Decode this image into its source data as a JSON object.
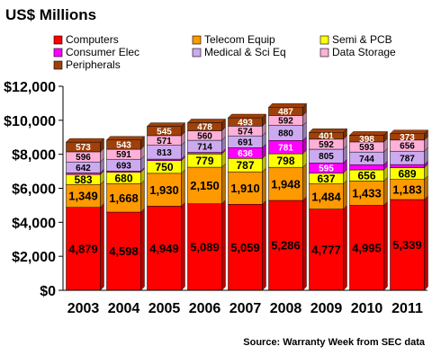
{
  "chart_data": {
    "type": "bar",
    "stacked": true,
    "title": "US$ Millions",
    "source": "Source: Warranty Week from SEC data",
    "categories": [
      "2003",
      "2004",
      "2005",
      "2006",
      "2007",
      "2008",
      "2009",
      "2010",
      "2011"
    ],
    "series": [
      {
        "name": "Computers",
        "color": "#ff0000",
        "values": [
          4879,
          4598,
          4949,
          5089,
          5059,
          5286,
          4777,
          4995,
          5339
        ]
      },
      {
        "name": "Telecom Equip",
        "color": "#ff9900",
        "values": [
          1349,
          1668,
          1930,
          2150,
          1910,
          1948,
          1484,
          1433,
          1183
        ]
      },
      {
        "name": "Semi & PCB",
        "color": "#ffff00",
        "values": [
          583,
          680,
          750,
          779,
          787,
          798,
          637,
          656,
          689
        ]
      },
      {
        "name": "Consumer Elec",
        "color": "#ff00ff",
        "values": [
          96,
          68,
          85,
          91,
          636,
          781,
          595,
          305,
          184
        ]
      },
      {
        "name": "Medical & Sci Eq",
        "color": "#ccaaf0",
        "values": [
          642,
          693,
          813,
          714,
          691,
          880,
          805,
          744,
          787
        ]
      },
      {
        "name": "Data Storage",
        "color": "#ffb0d8",
        "values": [
          596,
          591,
          571,
          560,
          574,
          592,
          592,
          593,
          656
        ]
      },
      {
        "name": "Peripherals",
        "color": "#a0400a",
        "values": [
          573,
          543,
          545,
          478,
          493,
          487,
          401,
          398,
          373
        ]
      }
    ],
    "value_labels": [
      [
        "4,879",
        "4,598",
        "4,949",
        "5,089",
        "5,059",
        "5,286",
        "4,777",
        "4,995",
        "5,339"
      ],
      [
        "1,349",
        "1,668",
        "1,930",
        "2,150",
        "1,910",
        "1,948",
        "1,484",
        "1,433",
        "1,183"
      ],
      [
        "583",
        "680",
        "750",
        "779",
        "787",
        "798",
        "637",
        "656",
        "689"
      ],
      [
        "",
        "",
        "",
        "",
        "636",
        "781",
        "595",
        "",
        ""
      ],
      [
        "642",
        "693",
        "813",
        "714",
        "691",
        "880",
        "805",
        "744",
        "787"
      ],
      [
        "596",
        "591",
        "571",
        "560",
        "574",
        "592",
        "592",
        "593",
        "656"
      ],
      [
        "573",
        "543",
        "545",
        "478",
        "493",
        "487",
        "401",
        "398",
        "373"
      ]
    ],
    "ylim": [
      0,
      12000
    ],
    "yticks": [
      0,
      2000,
      4000,
      6000,
      8000,
      10000,
      12000
    ],
    "ytick_labels": [
      "$0",
      "$2,000",
      "$4,000",
      "$6,000",
      "$8,000",
      "$10,000",
      "$12,000"
    ],
    "legend_position": "top",
    "grid": false,
    "xlabel": "",
    "ylabel": ""
  }
}
